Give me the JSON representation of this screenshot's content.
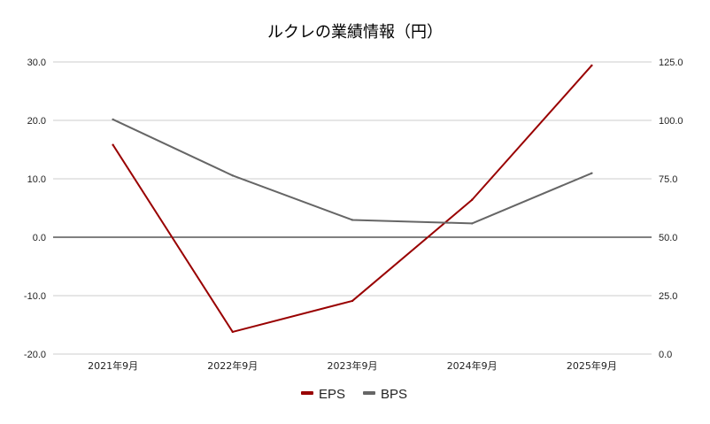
{
  "chart_data": {
    "type": "line",
    "title": "ルクレの業績情報（円）",
    "categories": [
      "2021年9月",
      "2022年9月",
      "2023年9月",
      "2024年9月",
      "2025年9月"
    ],
    "series": [
      {
        "name": "EPS",
        "axis": "left",
        "color": "#990000",
        "values": [
          15.8,
          -16.2,
          -10.9,
          6.4,
          29.4
        ]
      },
      {
        "name": "BPS",
        "axis": "right",
        "color": "#666666",
        "values": [
          100.4,
          76.4,
          57.4,
          55.9,
          77.4
        ]
      }
    ],
    "y_left": {
      "min": -20,
      "max": 30,
      "ticks": [
        "30.0",
        "20.0",
        "10.0",
        "0.0",
        "-10.0",
        "-20.0"
      ]
    },
    "y_right": {
      "min": 0,
      "max": 125,
      "ticks": [
        "125.0",
        "100.0",
        "75.0",
        "50.0",
        "25.0",
        "0.0"
      ]
    },
    "grid": true,
    "legend": "bottom"
  }
}
